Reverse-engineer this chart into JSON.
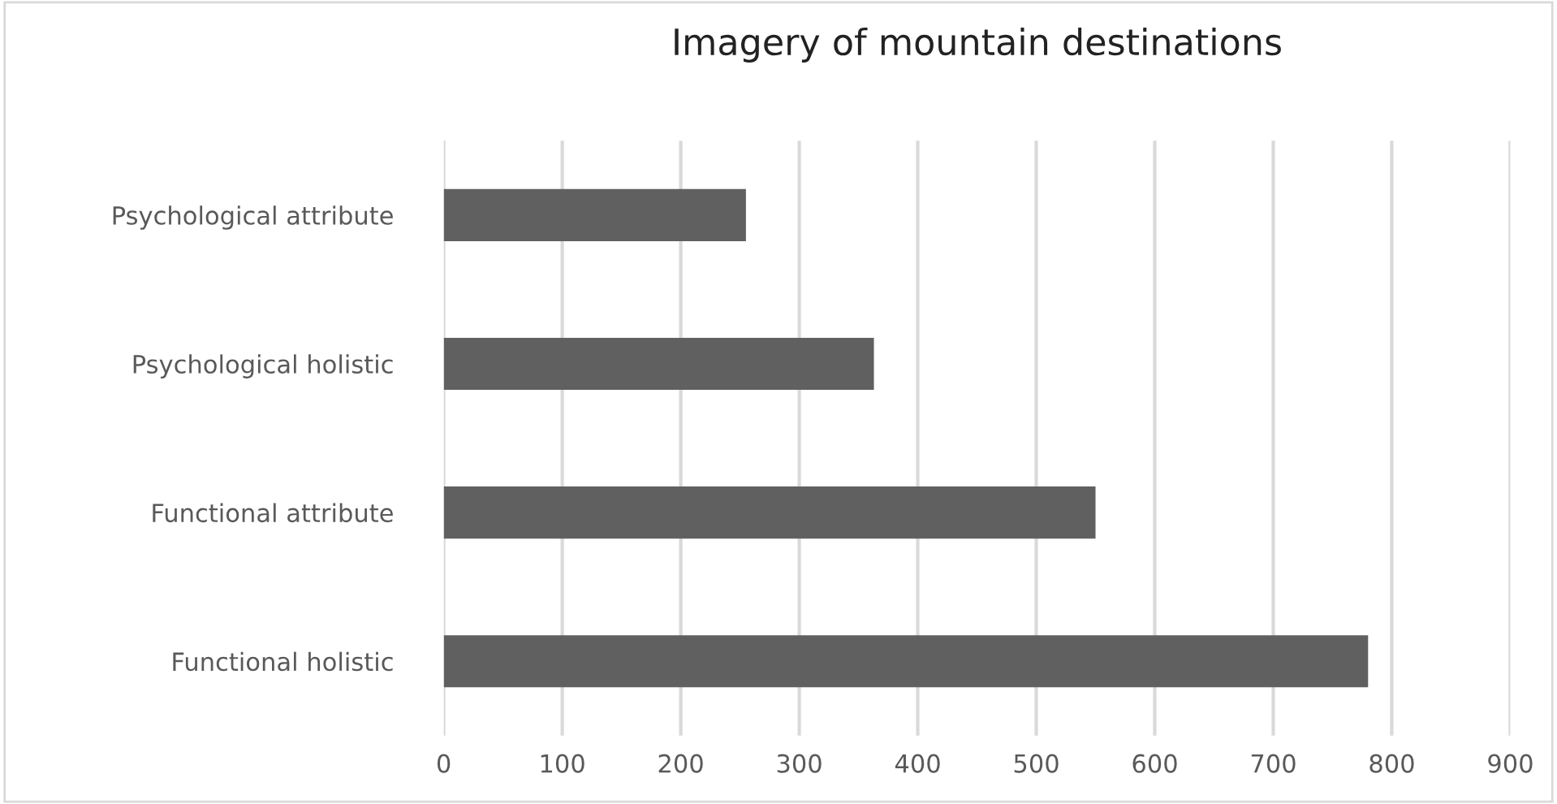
{
  "chart_data": {
    "type": "bar",
    "orientation": "horizontal",
    "title": "Imagery of mountain destinations",
    "categories": [
      "Psychological attribute",
      "Psychological holistic",
      "Functional attribute",
      "Functional holistic"
    ],
    "values": [
      255,
      363,
      550,
      780
    ],
    "color": "#606060",
    "xlim": [
      0,
      900
    ],
    "xticks": [
      0,
      100,
      200,
      300,
      400,
      500,
      600,
      700,
      800,
      900
    ],
    "grid": "x"
  }
}
